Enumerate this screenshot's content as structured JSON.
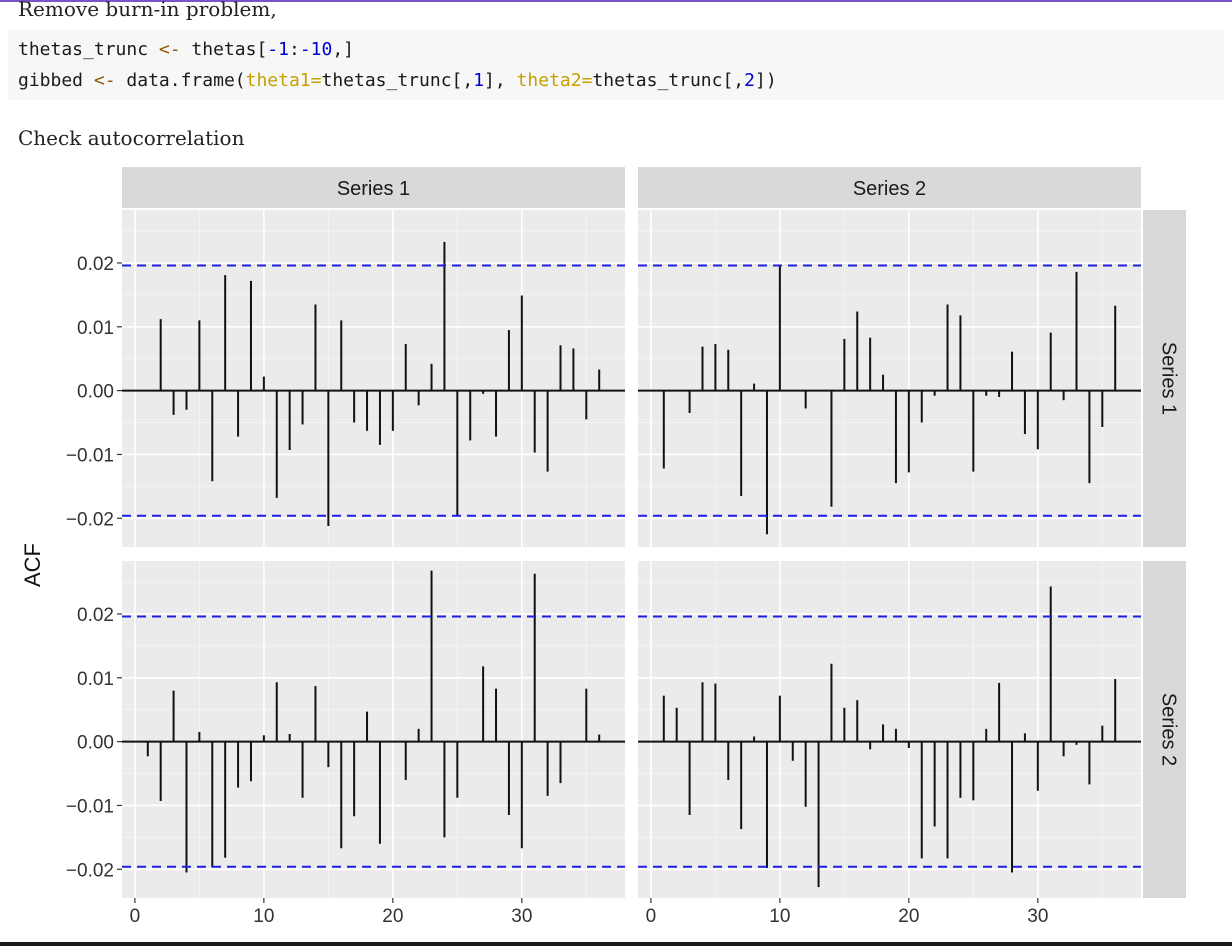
{
  "header_text": "Remove burn-in problem,",
  "code": {
    "line1": {
      "var": "thetas_trunc",
      "assign": "<-",
      "obj": "thetas",
      "idx_open": "[",
      "idx_num1": "-1",
      "idx_sep": ":",
      "idx_num2": "-10",
      "idx_close": ",]"
    },
    "line2": {
      "var": "gibbed",
      "assign": "<-",
      "func": "data.frame(",
      "arg1": "theta1=",
      "val1_pre": "thetas_trunc[,",
      "val1_num": "1",
      "val1_post": "], ",
      "arg2": "theta2=",
      "val2_pre": "thetas_trunc[,",
      "val2_num": "2",
      "val2_post": "])"
    }
  },
  "section_text": "Check autocorrelation",
  "chart_data": {
    "type": "bar",
    "ylabel": "ACF",
    "xlabel": "",
    "xlim": [
      -1,
      38
    ],
    "ylim": [
      -0.0245,
      0.0283
    ],
    "x_ticks": [
      0,
      10,
      20,
      30
    ],
    "y_ticks": [
      -0.02,
      -0.01,
      0.0,
      0.01,
      0.02
    ],
    "y_tick_labels": [
      "−0.02",
      "−0.01",
      "0.00",
      "0.01",
      "0.02"
    ],
    "ci_bound": 0.0196,
    "column_strips": [
      "Series 1",
      "Series 2"
    ],
    "row_strips": [
      "Series 1",
      "Series 2"
    ],
    "colors": {
      "ci_line": "#1f1fe6",
      "bar": "#111111",
      "panel_bg": "#ebebeb",
      "strip_bg": "#d9d9d9",
      "grid": "#ffffff"
    },
    "panels": [
      {
        "row": 0,
        "col": 0,
        "lags": [
          1,
          2,
          3,
          4,
          5,
          6,
          7,
          8,
          9,
          10,
          11,
          12,
          13,
          14,
          15,
          16,
          17,
          18,
          19,
          20,
          21,
          22,
          23,
          24,
          25,
          26,
          27,
          28,
          29,
          30,
          31,
          32,
          33,
          34,
          35,
          36
        ],
        "values": [
          0.0,
          0.0112,
          -0.0038,
          -0.003,
          0.011,
          -0.0142,
          0.0181,
          -0.0072,
          0.0172,
          0.0022,
          -0.0168,
          -0.0093,
          -0.0053,
          0.0135,
          -0.0212,
          0.011,
          -0.005,
          -0.0063,
          -0.0085,
          -0.0063,
          0.0073,
          -0.0023,
          0.0042,
          0.0233,
          -0.0195,
          -0.0078,
          -0.0005,
          -0.0072,
          0.0095,
          0.0149,
          -0.0097,
          -0.0127,
          0.0071,
          0.0066,
          -0.0045,
          0.0033
        ]
      },
      {
        "row": 0,
        "col": 1,
        "lags": [
          1,
          2,
          3,
          4,
          5,
          6,
          7,
          8,
          9,
          10,
          11,
          12,
          13,
          14,
          15,
          16,
          17,
          18,
          19,
          20,
          21,
          22,
          23,
          24,
          25,
          26,
          27,
          28,
          29,
          30,
          31,
          32,
          33,
          34,
          35,
          36
        ],
        "values": [
          -0.0122,
          0.0,
          -0.0035,
          0.0069,
          0.0073,
          0.0064,
          -0.0165,
          0.0011,
          -0.0225,
          0.0197,
          0.0,
          -0.0028,
          0.0,
          -0.0182,
          0.0081,
          0.0124,
          0.0083,
          0.0025,
          -0.0145,
          -0.0128,
          -0.005,
          -0.0008,
          0.0135,
          0.0118,
          -0.0127,
          -0.0008,
          -0.001,
          0.0061,
          -0.0068,
          -0.0092,
          0.0091,
          -0.0015,
          0.0186,
          -0.0145,
          -0.0057,
          0.0133
        ]
      },
      {
        "row": 1,
        "col": 0,
        "lags": [
          1,
          2,
          3,
          4,
          5,
          6,
          7,
          8,
          9,
          10,
          11,
          12,
          13,
          14,
          15,
          16,
          17,
          18,
          19,
          20,
          21,
          22,
          23,
          24,
          25,
          26,
          27,
          28,
          29,
          30,
          31,
          32,
          33,
          34,
          35,
          36
        ],
        "values": [
          -0.0023,
          -0.0093,
          0.008,
          -0.0205,
          0.0015,
          -0.0197,
          -0.0182,
          -0.0072,
          -0.0062,
          0.001,
          0.0093,
          0.0012,
          -0.0088,
          0.0087,
          -0.004,
          -0.0167,
          -0.0117,
          0.0047,
          -0.016,
          0.0,
          -0.006,
          0.002,
          0.0268,
          -0.015,
          -0.0088,
          0.0,
          0.0118,
          0.0083,
          -0.0115,
          -0.0167,
          0.0263,
          -0.0085,
          -0.0065,
          0.0,
          0.0083,
          0.0011
        ]
      },
      {
        "row": 1,
        "col": 1,
        "lags": [
          1,
          2,
          3,
          4,
          5,
          6,
          7,
          8,
          9,
          10,
          11,
          12,
          13,
          14,
          15,
          16,
          17,
          18,
          19,
          20,
          21,
          22,
          23,
          24,
          25,
          26,
          27,
          28,
          29,
          30,
          31,
          32,
          33,
          34,
          35,
          36
        ],
        "values": [
          0.0072,
          0.0053,
          -0.0115,
          0.0093,
          0.0091,
          -0.006,
          -0.0137,
          0.0008,
          -0.0198,
          0.0072,
          -0.003,
          -0.0102,
          -0.0228,
          0.0122,
          0.0053,
          0.0065,
          -0.0012,
          0.0027,
          0.002,
          -0.001,
          -0.0183,
          -0.0133,
          -0.0183,
          -0.0088,
          -0.0092,
          0.002,
          0.0092,
          -0.0205,
          0.0013,
          -0.0077,
          0.0243,
          -0.0023,
          -0.0005,
          -0.0067,
          0.0025,
          0.0098
        ]
      }
    ]
  }
}
